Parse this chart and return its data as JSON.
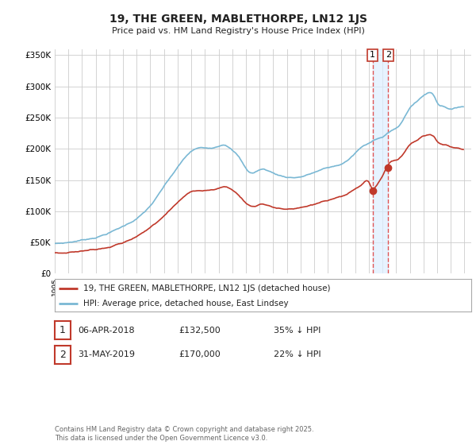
{
  "title": "19, THE GREEN, MABLETHORPE, LN12 1JS",
  "subtitle": "Price paid vs. HM Land Registry's House Price Index (HPI)",
  "ylabel_ticks": [
    "£0",
    "£50K",
    "£100K",
    "£150K",
    "£200K",
    "£250K",
    "£300K",
    "£350K"
  ],
  "ytick_values": [
    0,
    50000,
    100000,
    150000,
    200000,
    250000,
    300000,
    350000
  ],
  "ylim": [
    0,
    360000
  ],
  "xlim_start": 1995.0,
  "xlim_end": 2025.5,
  "hpi_color": "#7ab8d4",
  "price_color": "#c0392b",
  "vline_color": "#e05555",
  "vline_fill_color": "#ddeeff",
  "legend_label_red": "19, THE GREEN, MABLETHORPE, LN12 1JS (detached house)",
  "legend_label_blue": "HPI: Average price, detached house, East Lindsey",
  "transaction1_date": "06-APR-2018",
  "transaction1_price": "£132,500",
  "transaction1_note": "35% ↓ HPI",
  "transaction2_date": "31-MAY-2019",
  "transaction2_price": "£170,000",
  "transaction2_note": "22% ↓ HPI",
  "footnote": "Contains HM Land Registry data © Crown copyright and database right 2025.\nThis data is licensed under the Open Government Licence v3.0.",
  "vline1_x": 2018.27,
  "vline2_x": 2019.42,
  "dot1_x": 2018.27,
  "dot1_y": 132500,
  "dot2_x": 2019.42,
  "dot2_y": 170000,
  "background_color": "#ffffff",
  "grid_color": "#cccccc"
}
